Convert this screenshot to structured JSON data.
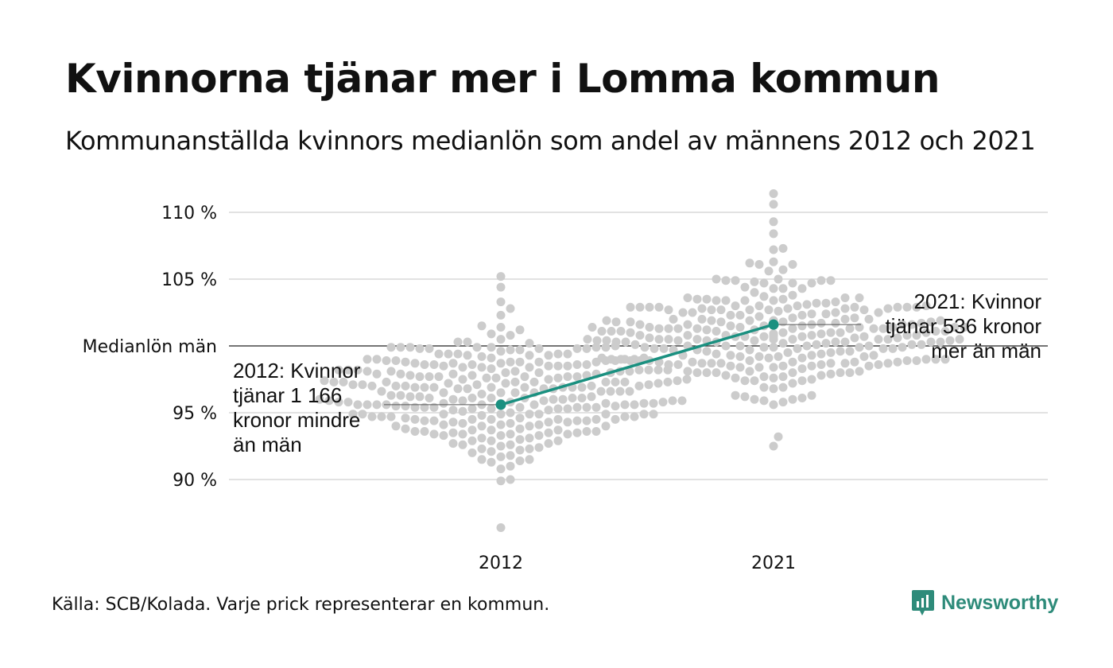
{
  "title": "Kvinnorna tjänar mer i Lomma kommun",
  "subtitle": "Kommunanställda kvinnors medianlön som andel av männens 2012 och 2021",
  "source": "Källa: SCB/Kolada. Varje prick representerar en kommun.",
  "brand": "Newsworthy",
  "colors": {
    "dots": "#cccccc",
    "highlight": "#1a9080",
    "grid": "#e2e2e2",
    "reference_line": "#222222"
  },
  "chart_data": {
    "type": "scatter",
    "subtype": "beeswarm",
    "title": "Kvinnorna tjänar mer i Lomma kommun",
    "subtitle": "Kommunanställda kvinnors medianlön som andel av männens 2012 och 2021",
    "categories": [
      "2012",
      "2021"
    ],
    "ylim": [
      86,
      112
    ],
    "y_ticks": [
      {
        "value": 110,
        "label": "110 %"
      },
      {
        "value": 105,
        "label": "105 %"
      },
      {
        "value": 95,
        "label": "95 %"
      },
      {
        "value": 90,
        "label": "90 %"
      }
    ],
    "reference_line": {
      "value": 100,
      "label": "Medianlön män"
    },
    "grid": true,
    "distributions": [
      {
        "category": "2012",
        "count": 290,
        "min": 86.4,
        "max": 105.2,
        "center": 96.3,
        "notable": [
          105.2,
          104.4,
          103.3,
          102.8,
          91.0,
          89.9,
          86.4
        ]
      },
      {
        "category": "2021",
        "count": 290,
        "min": 92.5,
        "max": 111.4,
        "center": 100.9,
        "notable": [
          111.4,
          110.6,
          109.3,
          108.4,
          93.2,
          92.5
        ]
      }
    ],
    "highlight": {
      "name": "Lomma",
      "points": [
        {
          "x": "2012",
          "y": 95.6
        },
        {
          "x": "2021",
          "y": 101.6
        }
      ]
    },
    "annotations": [
      {
        "x": "2012",
        "lines": [
          "2012: Kvinnor",
          "tjänar 1 166",
          "kronor mindre",
          "än män"
        ]
      },
      {
        "x": "2021",
        "lines": [
          "2021: Kvinnor",
          "tjänar 536 kronor",
          "mer än män"
        ]
      }
    ]
  }
}
